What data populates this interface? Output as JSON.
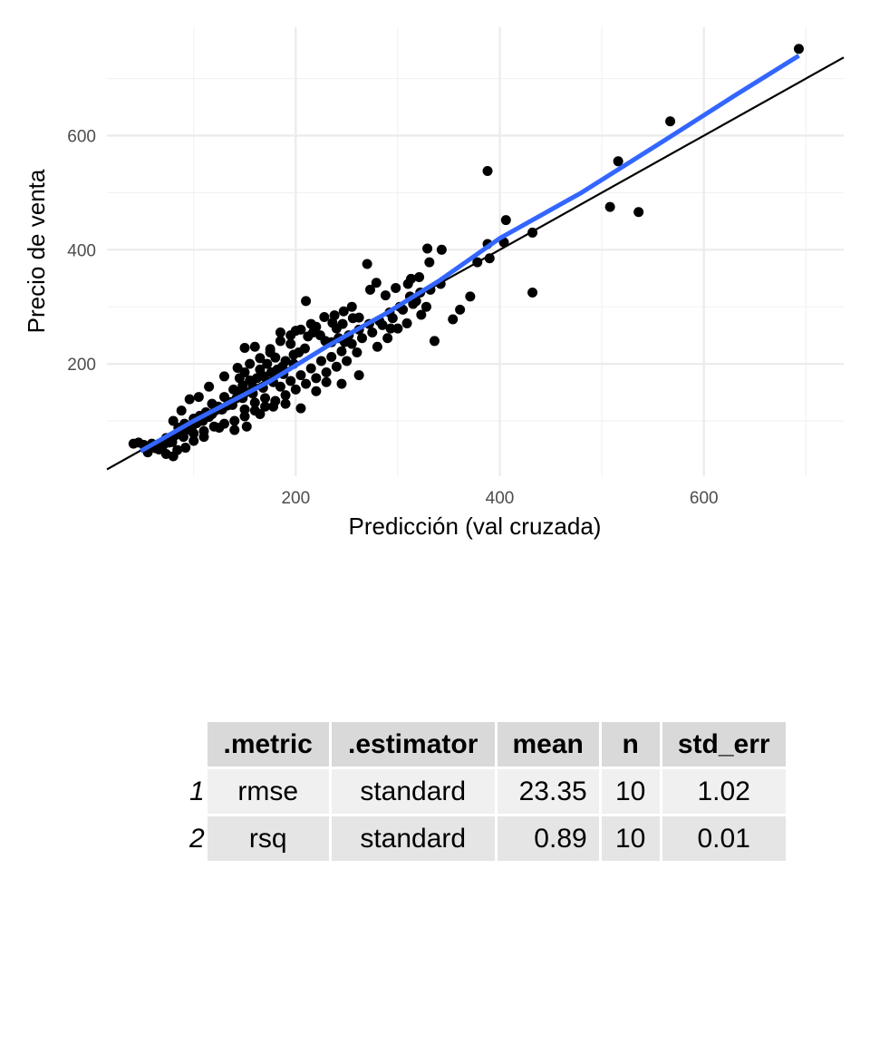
{
  "chart_data": {
    "type": "scatter",
    "xlabel": "Predicción (val cruzada)",
    "ylabel": "Precio de venta",
    "xlim": [
      15,
      737
    ],
    "ylim": [
      3,
      790
    ],
    "x_ticks": [
      200,
      400,
      600
    ],
    "y_ticks": [
      200,
      400,
      600
    ],
    "grid": true,
    "points_color": "#000000",
    "reference_line": {
      "intercept": 0,
      "slope": 1,
      "color": "#000000"
    },
    "smooth_line": {
      "color": "#3366ff",
      "x": [
        48,
        100,
        175,
        230,
        290,
        340,
        400,
        480,
        560,
        630,
        693
      ],
      "y": [
        47,
        100,
        170,
        230,
        290,
        345,
        420,
        500,
        590,
        670,
        740
      ]
    },
    "points": [
      [
        693,
        752
      ],
      [
        567,
        625
      ],
      [
        516,
        555
      ],
      [
        388,
        538
      ],
      [
        508,
        475
      ],
      [
        536,
        466
      ],
      [
        432,
        325
      ],
      [
        406,
        452
      ],
      [
        432,
        430
      ],
      [
        404,
        413
      ],
      [
        388,
        410
      ],
      [
        390,
        385
      ],
      [
        378,
        378
      ],
      [
        371,
        318
      ],
      [
        343,
        400
      ],
      [
        329,
        402
      ],
      [
        331,
        378
      ],
      [
        336,
        240
      ],
      [
        354,
        278
      ],
      [
        361,
        295
      ],
      [
        313,
        349
      ],
      [
        321,
        352
      ],
      [
        323,
        286
      ],
      [
        309,
        271
      ],
      [
        293,
        262
      ],
      [
        270,
        375
      ],
      [
        273,
        330
      ],
      [
        279,
        342
      ],
      [
        262,
        281
      ],
      [
        256,
        280
      ],
      [
        246,
        270
      ],
      [
        240,
        262
      ],
      [
        235,
        238
      ],
      [
        229,
        240
      ],
      [
        224,
        250
      ],
      [
        217,
        255
      ],
      [
        212,
        248
      ],
      [
        209,
        227
      ],
      [
        203,
        220
      ],
      [
        198,
        216
      ],
      [
        195,
        235
      ],
      [
        190,
        205
      ],
      [
        187,
        195
      ],
      [
        182,
        190
      ],
      [
        180,
        211
      ],
      [
        176,
        185
      ],
      [
        172,
        200
      ],
      [
        169,
        178
      ],
      [
        165,
        190
      ],
      [
        162,
        175
      ],
      [
        158,
        160
      ],
      [
        155,
        171
      ],
      [
        151,
        150
      ],
      [
        148,
        162
      ],
      [
        145,
        151
      ],
      [
        142,
        140
      ],
      [
        139,
        155
      ],
      [
        136,
        133
      ],
      [
        133,
        127
      ],
      [
        130,
        142
      ],
      [
        127,
        120
      ],
      [
        124,
        125
      ],
      [
        121,
        118
      ],
      [
        118,
        130
      ],
      [
        115,
        107
      ],
      [
        112,
        115
      ],
      [
        109,
        100
      ],
      [
        106,
        109
      ],
      [
        103,
        96
      ],
      [
        100,
        104
      ],
      [
        97,
        92
      ],
      [
        94,
        85
      ],
      [
        91,
        95
      ],
      [
        88,
        80
      ],
      [
        85,
        88
      ],
      [
        82,
        75
      ],
      [
        79,
        63
      ],
      [
        76,
        62
      ],
      [
        73,
        70
      ],
      [
        70,
        57
      ],
      [
        66,
        50
      ],
      [
        63,
        52
      ],
      [
        59,
        60
      ],
      [
        55,
        45
      ],
      [
        51,
        58
      ],
      [
        46,
        62
      ],
      [
        41,
        60
      ],
      [
        73,
        42
      ],
      [
        80,
        38
      ],
      [
        84,
        49
      ],
      [
        92,
        53
      ],
      [
        100,
        65
      ],
      [
        110,
        72
      ],
      [
        125,
        88
      ],
      [
        140,
        84
      ],
      [
        152,
        90
      ],
      [
        165,
        112
      ],
      [
        178,
        125
      ],
      [
        190,
        130
      ],
      [
        205,
        122
      ],
      [
        220,
        152
      ],
      [
        230,
        168
      ],
      [
        245,
        165
      ],
      [
        262,
        180
      ],
      [
        238,
        285
      ],
      [
        247,
        292
      ],
      [
        255,
        300
      ],
      [
        220,
        265
      ],
      [
        200,
        258
      ],
      [
        185,
        255
      ],
      [
        175,
        226
      ],
      [
        160,
        230
      ],
      [
        150,
        228
      ],
      [
        143,
        193
      ],
      [
        130,
        178
      ],
      [
        115,
        160
      ],
      [
        105,
        142
      ],
      [
        96,
        138
      ],
      [
        88,
        118
      ],
      [
        80,
        100
      ],
      [
        150,
        120
      ],
      [
        160,
        132
      ],
      [
        170,
        140
      ],
      [
        185,
        160
      ],
      [
        195,
        170
      ],
      [
        205,
        180
      ],
      [
        215,
        192
      ],
      [
        225,
        205
      ],
      [
        235,
        212
      ],
      [
        245,
        222
      ],
      [
        255,
        235
      ],
      [
        265,
        245
      ],
      [
        275,
        255
      ],
      [
        285,
        268
      ],
      [
        295,
        280
      ],
      [
        305,
        295
      ],
      [
        315,
        305
      ],
      [
        280,
        230
      ],
      [
        290,
        245
      ],
      [
        300,
        262
      ],
      [
        260,
        220
      ],
      [
        250,
        205
      ],
      [
        240,
        195
      ],
      [
        230,
        185
      ],
      [
        220,
        175
      ],
      [
        210,
        165
      ],
      [
        200,
        155
      ],
      [
        190,
        145
      ],
      [
        180,
        135
      ],
      [
        170,
        125
      ],
      [
        160,
        118
      ],
      [
        150,
        108
      ],
      [
        140,
        100
      ],
      [
        130,
        95
      ],
      [
        120,
        90
      ],
      [
        110,
        82
      ],
      [
        100,
        78
      ],
      [
        90,
        72
      ],
      [
        252,
        250
      ],
      [
        262,
        260
      ],
      [
        272,
        270
      ],
      [
        282,
        275
      ],
      [
        292,
        290
      ],
      [
        302,
        300
      ],
      [
        312,
        318
      ],
      [
        322,
        325
      ],
      [
        332,
        330
      ],
      [
        342,
        340
      ],
      [
        288,
        320
      ],
      [
        298,
        333
      ],
      [
        310,
        340
      ],
      [
        318,
        310
      ],
      [
        328,
        300
      ],
      [
        210,
        310
      ],
      [
        228,
        282
      ],
      [
        236,
        272
      ],
      [
        242,
        245
      ],
      [
        248,
        238
      ],
      [
        198,
        200
      ],
      [
        188,
        182
      ],
      [
        178,
        168
      ],
      [
        168,
        158
      ],
      [
        158,
        148
      ],
      [
        148,
        140
      ],
      [
        138,
        128
      ],
      [
        128,
        120
      ],
      [
        118,
        112
      ],
      [
        108,
        102
      ],
      [
        98,
        88
      ],
      [
        150,
        185
      ],
      [
        145,
        175
      ],
      [
        155,
        200
      ],
      [
        165,
        210
      ],
      [
        175,
        220
      ],
      [
        185,
        240
      ],
      [
        195,
        250
      ],
      [
        205,
        260
      ],
      [
        215,
        270
      ]
    ]
  },
  "table": {
    "columns": [
      ".metric",
      ".estimator",
      "mean",
      "n",
      "std_err"
    ],
    "rows": [
      {
        "num": "1",
        "metric": "rmse",
        "estimator": "standard",
        "mean": "23.35",
        "n": "10",
        "std_err": "1.02"
      },
      {
        "num": "2",
        "metric": "rsq",
        "estimator": "standard",
        "mean": "0.89",
        "n": "10",
        "std_err": "0.01"
      }
    ]
  }
}
